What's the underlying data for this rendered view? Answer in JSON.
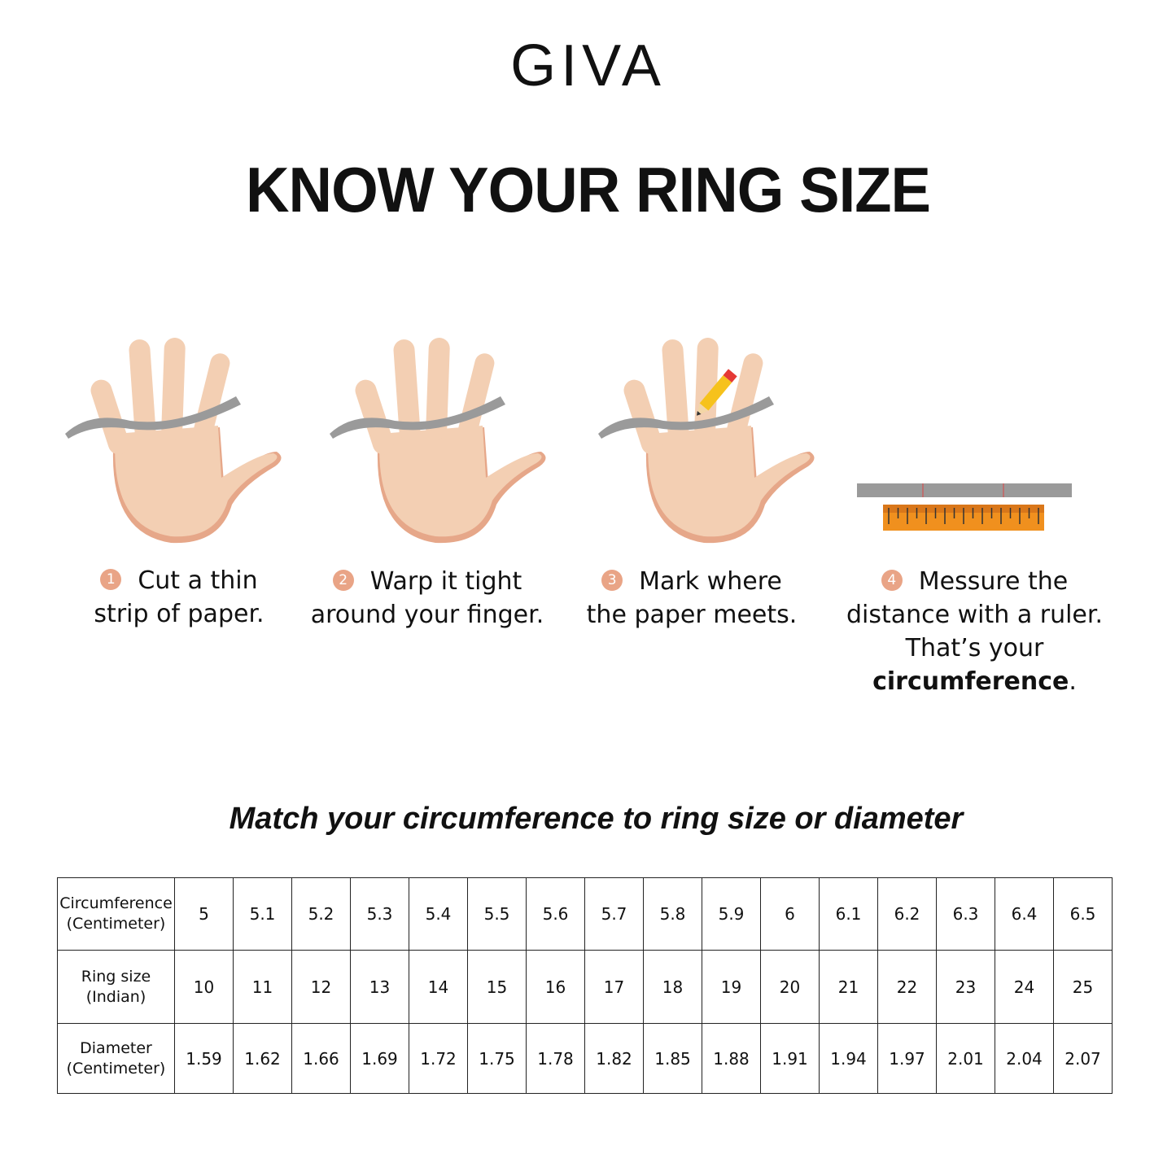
{
  "brand": {
    "logo": "GIVA"
  },
  "title": "KNOW YOUR RING SIZE",
  "steps": [
    {
      "number": "1",
      "line1": "Cut a thin",
      "line2": "strip of paper."
    },
    {
      "number": "2",
      "line1": "Warp it tight",
      "line2": "around your finger."
    },
    {
      "number": "3",
      "line1": "Mark where",
      "line2": "the paper meets."
    },
    {
      "number": "4",
      "line1": "Messure the",
      "line2": "distance with a ruler.",
      "line3_prefix": "That’s your ",
      "line3_bold": "circumference",
      "line3_suffix": "."
    }
  ],
  "subtitle": "Match your circumference to ring size or diameter",
  "table": {
    "rows": [
      {
        "label1": "Circumference",
        "label2": "(Centimeter)",
        "values": [
          "5",
          "5.1",
          "5.2",
          "5.3",
          "5.4",
          "5.5",
          "5.6",
          "5.7",
          "5.8",
          "5.9",
          "6",
          "6.1",
          "6.2",
          "6.3",
          "6.4",
          "6.5"
        ]
      },
      {
        "label1": "Ring size",
        "label2": "(Indian)",
        "values": [
          "10",
          "11",
          "12",
          "13",
          "14",
          "15",
          "16",
          "17",
          "18",
          "19",
          "20",
          "21",
          "22",
          "23",
          "24",
          "25"
        ]
      },
      {
        "label1": "Diameter",
        "label2": "(Centimeter)",
        "values": [
          "1.59",
          "1.62",
          "1.66",
          "1.69",
          "1.72",
          "1.75",
          "1.78",
          "1.82",
          "1.85",
          "1.88",
          "1.91",
          "1.94",
          "1.97",
          "2.01",
          "2.04",
          "2.07"
        ]
      }
    ]
  },
  "colors": {
    "skin": "#f3cfb3",
    "skin_shade": "#e6a789",
    "badge": "#e9a486",
    "paper": "#9a9a9a",
    "ruler": "#f0901e"
  }
}
